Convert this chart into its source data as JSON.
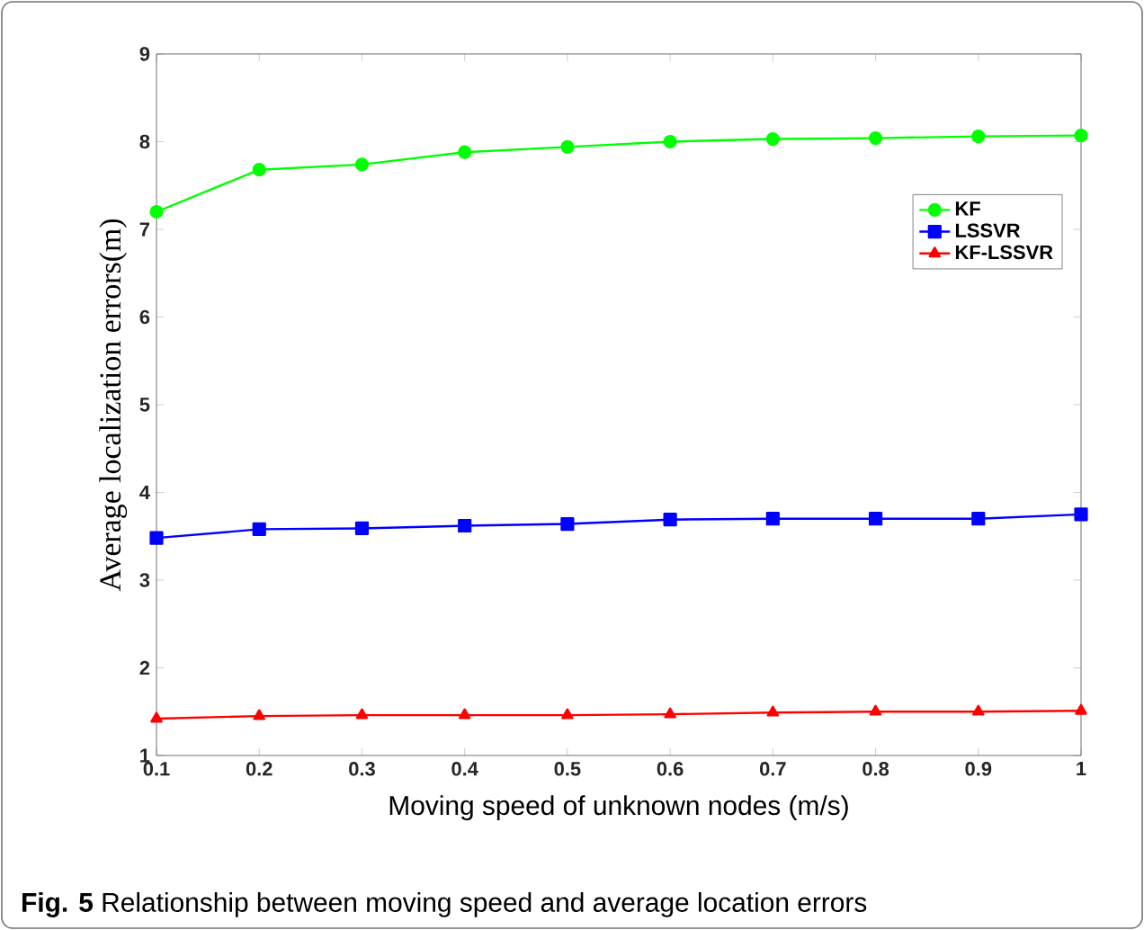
{
  "chart_data": {
    "type": "line",
    "xlabel": "Moving speed of unknown nodes (m/s)",
    "ylabel": "Average localization errors(m)",
    "annotations": [
      "**Fig. 5** Relationship between moving speed and average location errors"
    ],
    "x": [
      0.1,
      0.2,
      0.3,
      0.4,
      0.5,
      0.6,
      0.7,
      0.8,
      0.9,
      1
    ],
    "series": [
      {
        "name": "KF",
        "color": "#00ff00",
        "marker": "circle",
        "values": [
          7.2,
          7.68,
          7.74,
          7.88,
          7.94,
          8.0,
          8.03,
          8.04,
          8.06,
          8.07
        ]
      },
      {
        "name": "LSSVR",
        "color": "#0000ff",
        "marker": "square",
        "values": [
          3.48,
          3.58,
          3.59,
          3.62,
          3.64,
          3.69,
          3.7,
          3.7,
          3.7,
          3.75
        ]
      },
      {
        "name": "KF-LSSVR",
        "color": "#ff0000",
        "marker": "triangle",
        "values": [
          1.42,
          1.45,
          1.46,
          1.46,
          1.46,
          1.47,
          1.49,
          1.5,
          1.5,
          1.51
        ]
      }
    ],
    "xlim": [
      0.1,
      1
    ],
    "ylim": [
      1,
      9
    ],
    "xticks": [
      0.1,
      0.2,
      0.3,
      0.4,
      0.5,
      0.6,
      0.7,
      0.8,
      0.9,
      1
    ],
    "yticks": [
      1,
      2,
      3,
      4,
      5,
      6,
      7,
      8,
      9
    ],
    "grid": false,
    "legend": "top right",
    "line_style": "solid"
  }
}
